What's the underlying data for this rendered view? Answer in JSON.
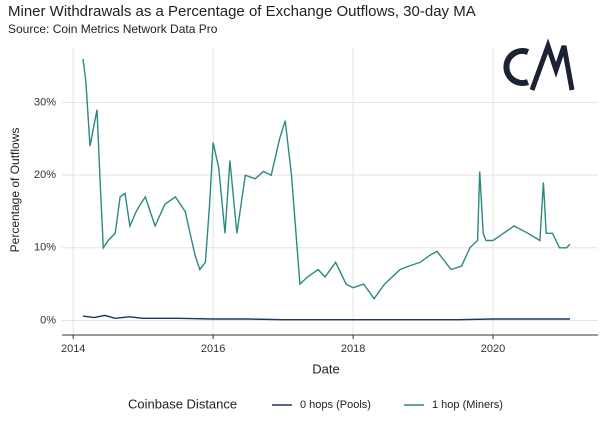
{
  "chart_data": {
    "type": "line",
    "title": "Miner Withdrawals as a Percentage of Exchange Outflows, 30-day MA",
    "subtitle": "Source: Coin Metrics Network Data Pro",
    "x_label": "Date",
    "y_label": "Percentage of Outflows",
    "legend_title": "Coinbase Distance",
    "legend": "bottom",
    "grid": true,
    "xlim": [
      2013.84,
      2021.5
    ],
    "xticks": [
      2014,
      2016,
      2018,
      2020
    ],
    "ylim": [
      -2,
      37.5
    ],
    "yticks": [
      {
        "value": 0,
        "label": "0%"
      },
      {
        "value": 10,
        "label": "10%"
      },
      {
        "value": 20,
        "label": "20%"
      },
      {
        "value": 30,
        "label": "30%"
      }
    ],
    "series": [
      {
        "name": "0 hops (Pools)",
        "color": "#1f3566",
        "x": [
          2014.14,
          2014.3,
          2014.45,
          2014.6,
          2014.8,
          2015.0,
          2015.5,
          2016.0,
          2016.5,
          2017.0,
          2017.5,
          2018.0,
          2018.5,
          2019.0,
          2019.5,
          2020.0,
          2020.5,
          2021.1
        ],
        "values": [
          0.6,
          0.4,
          0.7,
          0.3,
          0.5,
          0.3,
          0.3,
          0.2,
          0.2,
          0.1,
          0.1,
          0.1,
          0.1,
          0.1,
          0.1,
          0.2,
          0.2,
          0.2
        ]
      },
      {
        "name": "1 hop (Miners)",
        "color": "#2b8a80",
        "x": [
          2014.14,
          2014.18,
          2014.24,
          2014.3,
          2014.34,
          2014.39,
          2014.43,
          2014.5,
          2014.6,
          2014.67,
          2014.74,
          2014.81,
          2014.9,
          2014.96,
          2015.03,
          2015.1,
          2015.17,
          2015.31,
          2015.46,
          2015.6,
          2015.74,
          2015.81,
          2015.89,
          2015.95,
          2016.0,
          2016.08,
          2016.17,
          2016.24,
          2016.34,
          2016.46,
          2016.6,
          2016.72,
          2016.83,
          2016.95,
          2017.03,
          2017.12,
          2017.24,
          2017.35,
          2017.5,
          2017.6,
          2017.75,
          2017.9,
          2018.0,
          2018.15,
          2018.3,
          2018.45,
          2018.67,
          2018.8,
          2018.96,
          2019.1,
          2019.2,
          2019.4,
          2019.55,
          2019.67,
          2019.78,
          2019.81,
          2019.86,
          2019.9,
          2020.0,
          2020.15,
          2020.3,
          2020.5,
          2020.67,
          2020.72,
          2020.76,
          2020.85,
          2020.95,
          2021.05,
          2021.1
        ],
        "values": [
          36,
          33,
          24,
          27,
          29,
          18,
          10,
          11,
          12,
          17,
          17.5,
          13,
          15,
          16,
          17,
          15,
          13,
          16,
          17,
          15,
          9,
          7,
          8,
          16,
          24.5,
          21,
          12,
          22,
          12,
          20,
          19.5,
          20.5,
          20,
          25,
          27.5,
          20,
          5,
          6,
          7,
          6,
          8,
          5,
          4.5,
          5,
          3,
          5,
          7,
          7.5,
          8,
          9,
          9.5,
          7,
          7.5,
          10,
          11,
          20.5,
          12,
          11,
          11,
          12,
          13,
          12,
          11,
          19,
          12,
          12,
          10,
          10,
          10.5
        ]
      }
    ]
  }
}
